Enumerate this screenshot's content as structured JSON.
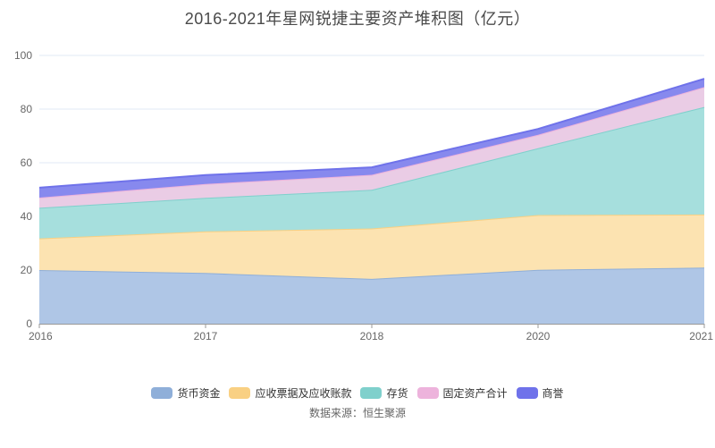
{
  "title": "2016-2021年星网锐捷主要资产堆积图（亿元）",
  "footer": {
    "source": "数据来源：恒生聚源"
  },
  "colors": {
    "title_text": "#4a4a4a",
    "axis_text": "#666666",
    "legend_text": "#333333",
    "gridline": "#e2e8f4",
    "axis_line": "#999999",
    "background": "#ffffff"
  },
  "chart_data": {
    "type": "area",
    "stacked": true,
    "title": "2016-2021年星网锐捷主要资产堆积图（亿元）",
    "xlabel": "",
    "ylabel": "",
    "categories": [
      "2016",
      "2017",
      "2018",
      "2020",
      "2021"
    ],
    "y_ticks": [
      0,
      20,
      40,
      60,
      80,
      100
    ],
    "ylim": [
      0,
      100
    ],
    "grid": true,
    "legend_position": "bottom",
    "series": [
      {
        "name": "货币资金",
        "line_color": "#8fafd9",
        "area_color": "#afc6e6",
        "values": [
          20.0,
          18.9,
          16.7,
          20.1,
          20.9
        ]
      },
      {
        "name": "应收票据及应收账款",
        "line_color": "#f9d083",
        "area_color": "#fce3b1",
        "values": [
          11.8,
          15.5,
          18.8,
          20.4,
          19.8
        ]
      },
      {
        "name": "存货",
        "line_color": "#7fd0cc",
        "area_color": "#a6dfdd",
        "values": [
          11.4,
          12.5,
          14.4,
          24.9,
          40.1
        ]
      },
      {
        "name": "固定资产合计",
        "line_color": "#edb3dc",
        "area_color": "#eaccE5",
        "values": [
          3.8,
          5.2,
          5.6,
          5.0,
          7.4
        ]
      },
      {
        "name": "商誉",
        "line_color": "#6f72ea",
        "area_color": "#8789ee",
        "values": [
          3.7,
          3.3,
          2.8,
          2.2,
          3.1
        ]
      }
    ]
  }
}
